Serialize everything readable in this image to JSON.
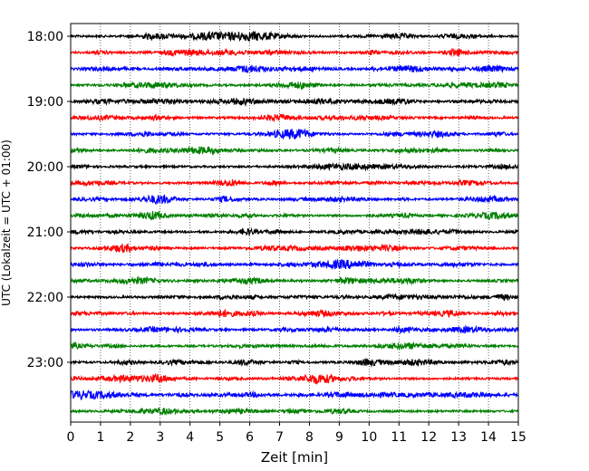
{
  "chart_data": {
    "type": "line",
    "xlabel": "Zeit  [min]",
    "ylabel": "UTC (Lokalzeit = UTC + 01:00)",
    "xlim": [
      0,
      15
    ],
    "x_ticks": [
      "0",
      "1",
      "2",
      "3",
      "4",
      "5",
      "6",
      "7",
      "8",
      "9",
      "10",
      "11",
      "12",
      "13",
      "14",
      "15"
    ],
    "y_ticks": [
      "18:00",
      "19:00",
      "20:00",
      "21:00",
      "22:00",
      "23:00"
    ],
    "grid": "vertical dotted",
    "trace_colors": [
      "#000000",
      "#ff0000",
      "#0000ff",
      "#008000"
    ],
    "series": [
      {
        "start": "18:00",
        "color": "#000000"
      },
      {
        "start": "18:15",
        "color": "#ff0000"
      },
      {
        "start": "18:30",
        "color": "#0000ff"
      },
      {
        "start": "18:45",
        "color": "#008000"
      },
      {
        "start": "19:00",
        "color": "#000000"
      },
      {
        "start": "19:15",
        "color": "#ff0000"
      },
      {
        "start": "19:30",
        "color": "#0000ff"
      },
      {
        "start": "19:45",
        "color": "#008000"
      },
      {
        "start": "20:00",
        "color": "#000000"
      },
      {
        "start": "20:15",
        "color": "#ff0000"
      },
      {
        "start": "20:30",
        "color": "#0000ff"
      },
      {
        "start": "20:45",
        "color": "#008000"
      },
      {
        "start": "21:00",
        "color": "#000000"
      },
      {
        "start": "21:15",
        "color": "#ff0000"
      },
      {
        "start": "21:30",
        "color": "#0000ff"
      },
      {
        "start": "21:45",
        "color": "#008000"
      },
      {
        "start": "22:00",
        "color": "#000000"
      },
      {
        "start": "22:15",
        "color": "#ff0000"
      },
      {
        "start": "22:30",
        "color": "#0000ff"
      },
      {
        "start": "22:45",
        "color": "#008000"
      },
      {
        "start": "23:00",
        "color": "#000000"
      },
      {
        "start": "23:15",
        "color": "#ff0000"
      },
      {
        "start": "23:30",
        "color": "#0000ff"
      },
      {
        "start": "23:45",
        "color": "#008000"
      }
    ]
  }
}
